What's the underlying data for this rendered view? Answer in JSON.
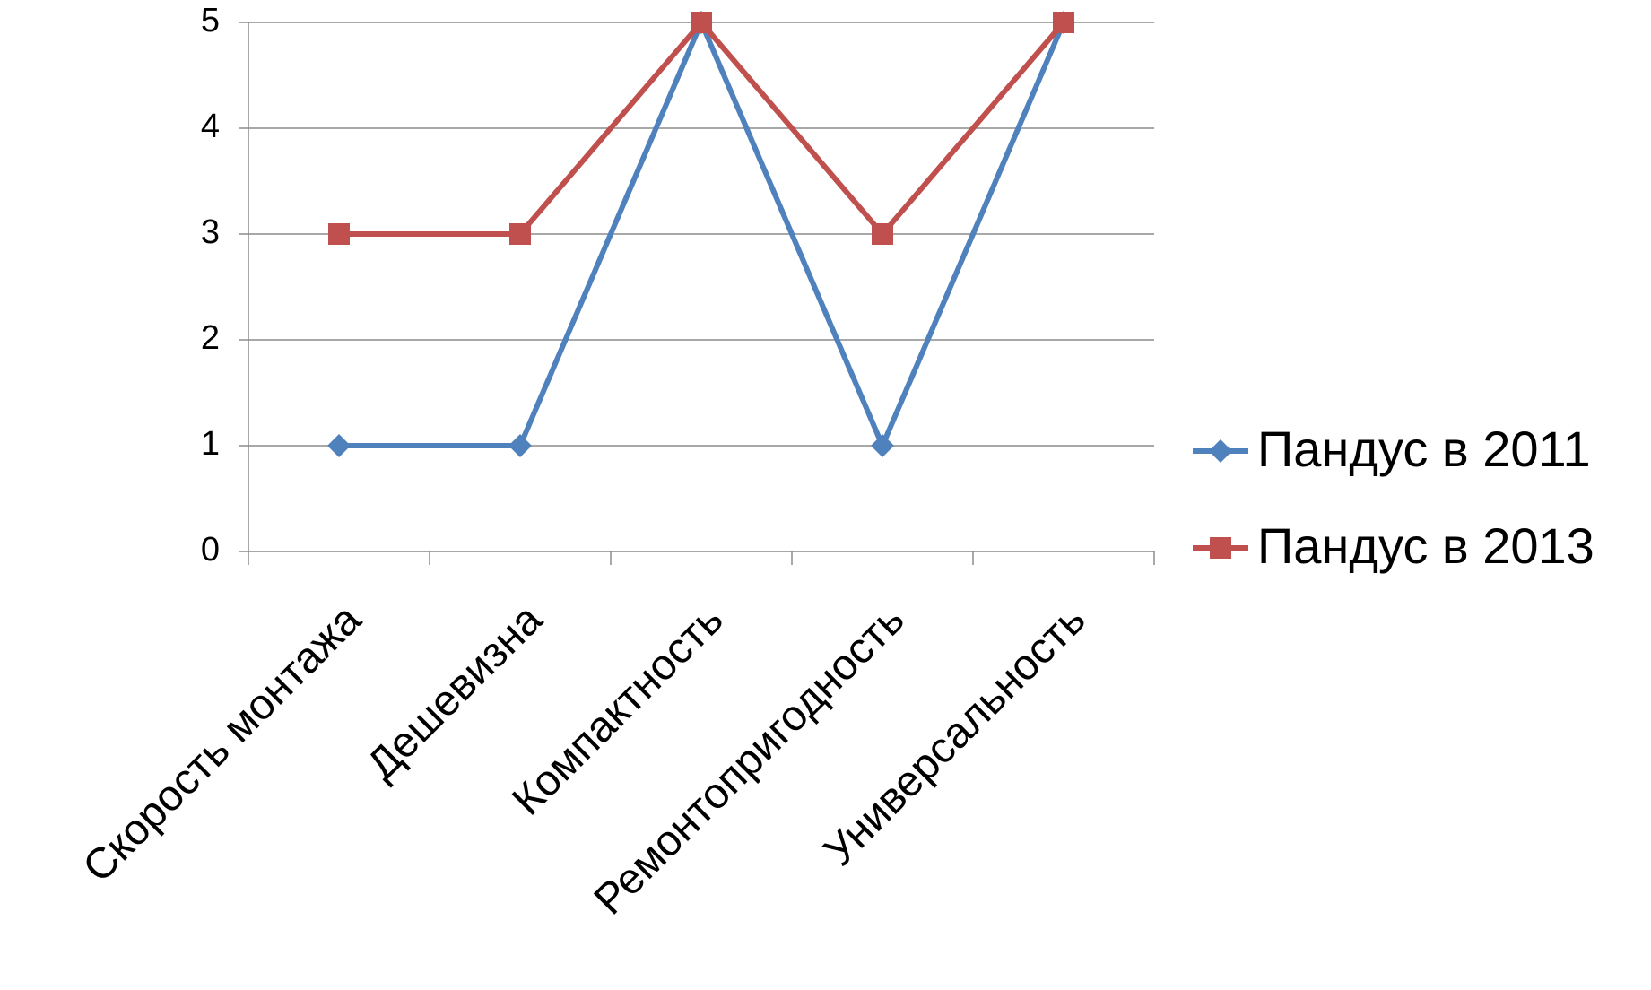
{
  "chart_data": {
    "type": "line",
    "categories": [
      "Скорость монтажа",
      "Дешевизна",
      "Компактность",
      "Ремонтопригодность",
      "Универсальность"
    ],
    "series": [
      {
        "name": "Пандус в 2011",
        "values": [
          1,
          1,
          5,
          1,
          5
        ],
        "color": "#4f81bd",
        "marker": "diamond"
      },
      {
        "name": "Пандус в 2013",
        "values": [
          3,
          3,
          5,
          3,
          5
        ],
        "color": "#c0504d",
        "marker": "square"
      }
    ],
    "title": "",
    "xlabel": "",
    "ylabel": "",
    "ylim": [
      0,
      5
    ],
    "yticks": [
      0,
      1,
      2,
      3,
      4,
      5
    ],
    "grid": true,
    "legend_position": "right"
  }
}
